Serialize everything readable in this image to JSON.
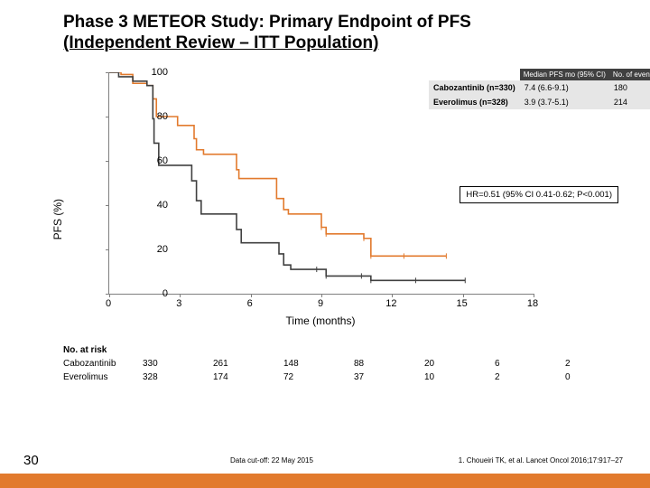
{
  "title_line1": "Phase 3 METEOR Study: Primary Endpoint of PFS",
  "title_line2": "(Independent Review – ITT Population)",
  "chart": {
    "type": "kaplan-meier",
    "ylabel": "PFS (%)",
    "xlabel": "Time (months)",
    "ylim": [
      0,
      100
    ],
    "ytick_step": 20,
    "xlim": [
      0,
      18
    ],
    "xtick_step": 3,
    "xticks": [
      0,
      3,
      6,
      9,
      12,
      15,
      18
    ],
    "yticks": [
      0,
      20,
      40,
      60,
      80,
      100
    ],
    "axis_color": "#7f7f7f",
    "series": [
      {
        "name": "Cabozantinib",
        "color": "#e27a2d",
        "points": [
          [
            0,
            100
          ],
          [
            0.5,
            99
          ],
          [
            1.0,
            95
          ],
          [
            1.6,
            94
          ],
          [
            1.85,
            88
          ],
          [
            2.0,
            80
          ],
          [
            2.5,
            80
          ],
          [
            2.9,
            76
          ],
          [
            3.6,
            70
          ],
          [
            3.7,
            65
          ],
          [
            4.0,
            63
          ],
          [
            4.5,
            63
          ],
          [
            5.4,
            56
          ],
          [
            5.5,
            52
          ],
          [
            6.0,
            52
          ],
          [
            7.1,
            43
          ],
          [
            7.4,
            38
          ],
          [
            7.6,
            36
          ],
          [
            9.0,
            30
          ],
          [
            9.2,
            27
          ],
          [
            10.8,
            25
          ],
          [
            11.1,
            17
          ],
          [
            12.5,
            17
          ],
          [
            14.3,
            17
          ]
        ]
      },
      {
        "name": "Everolimus",
        "color": "#404040",
        "points": [
          [
            0,
            100
          ],
          [
            0.4,
            98
          ],
          [
            1.0,
            96
          ],
          [
            1.6,
            94
          ],
          [
            1.85,
            79
          ],
          [
            1.9,
            68
          ],
          [
            2.1,
            58
          ],
          [
            2.5,
            58
          ],
          [
            3.5,
            51
          ],
          [
            3.7,
            42
          ],
          [
            3.9,
            36
          ],
          [
            4.5,
            36
          ],
          [
            5.4,
            29
          ],
          [
            5.6,
            23
          ],
          [
            6.0,
            23
          ],
          [
            7.2,
            18
          ],
          [
            7.4,
            13
          ],
          [
            7.7,
            11
          ],
          [
            8.8,
            11
          ],
          [
            9.2,
            8
          ],
          [
            10.7,
            8
          ],
          [
            11.1,
            6
          ],
          [
            13.0,
            6
          ],
          [
            15.1,
            6
          ]
        ]
      }
    ],
    "censor_color": "#000000",
    "line_width": 1.6
  },
  "legend": {
    "headers": [
      "",
      "Median PFS mo (95% CI)",
      "No. of events"
    ],
    "rows": [
      {
        "arm": "Cabozantinib (n=330)",
        "median": "7.4 (6.6-9.1)",
        "events": "180",
        "color": "#e27a2d"
      },
      {
        "arm": "Everolimus (n=328)",
        "median": "3.9 (3.7-5.1)",
        "events": "214",
        "color": "#404040"
      }
    ]
  },
  "hr_text": "HR=0.51 (95% CI 0.41-0.62; P<0.001)",
  "risk": {
    "title": "No. at risk",
    "arms": [
      {
        "name": "Cabozantinib",
        "values": [
          "330",
          "261",
          "148",
          "88",
          "20",
          "6",
          "2"
        ]
      },
      {
        "name": "Everolimus",
        "values": [
          "328",
          "174",
          "72",
          "37",
          "10",
          "2",
          "0"
        ]
      }
    ]
  },
  "page_number": "30",
  "cutoff_text": "Data cut-off: 22 May 2015",
  "citation": "1. Choueiri TK, et al. Lancet Oncol 2016;17:917–27",
  "accent_color": "#e27a2d"
}
